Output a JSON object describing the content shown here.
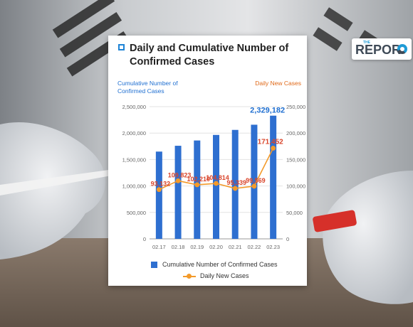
{
  "logo": {
    "small": "THE",
    "text": "REPOR"
  },
  "card": {
    "title": "Daily and Cumulative Number of Confirmed Cases",
    "left_axis_title": "Cumulative Number of Confirmed Cases",
    "right_axis_title": "Daily New Cases"
  },
  "colors": {
    "bar": "#2e6fd0",
    "line": "#f39a2a",
    "line_label": "#d9452b",
    "left_axis": "#1f6fd1",
    "right_axis": "#e06a1a"
  },
  "chart_data": {
    "type": "bar",
    "categories": [
      "02.17",
      "02.18",
      "02.19",
      "02.20",
      "02.21",
      "02.22",
      "02.23"
    ],
    "series": [
      {
        "name": "Cumulative Number of Confirmed Cases",
        "type": "bar",
        "axis": "left",
        "values": [
          1650000,
          1760000,
          1860000,
          1965000,
          2060000,
          2158000,
          2329182
        ],
        "labels": [
          "",
          "",
          "",
          "",
          "",
          "",
          "2,329,182"
        ]
      },
      {
        "name": "Daily New Cases",
        "type": "line",
        "axis": "right",
        "values": [
          93132,
          109823,
          102210,
          104814,
          95339,
          99569,
          171452
        ],
        "labels": [
          "93,132",
          "109,823",
          "102,210",
          "104,814",
          "95,339",
          "99,569",
          "171,452"
        ]
      }
    ],
    "left_axis": {
      "ylim": [
        0,
        2500000
      ],
      "ticks": [
        "0",
        "500,000",
        "1,000,000",
        "1,500,000",
        "2,000,000",
        "2,500,000"
      ]
    },
    "right_axis": {
      "ylim": [
        0,
        250000
      ],
      "ticks": [
        "0",
        "50,000",
        "100,000",
        "150,000",
        "200,000",
        "250,000"
      ]
    },
    "grid": true,
    "legend": "bottom"
  }
}
